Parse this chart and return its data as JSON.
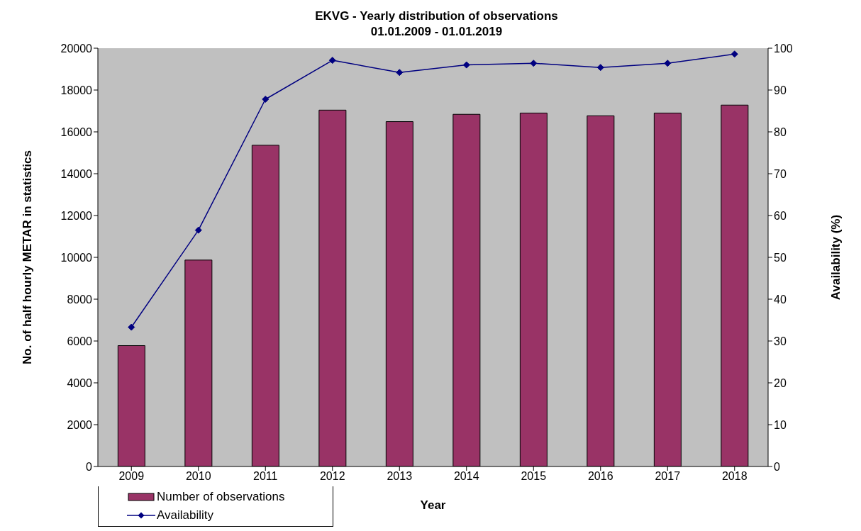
{
  "chart_data": {
    "type": "bar",
    "title": "EKVG - Yearly distribution of observations\n01.01.2009 - 01.01.2019",
    "xlabel": "Year",
    "ylabel": "No. of half hourly METAR in statistics",
    "y2label": "Availability (%)",
    "categories": [
      "2009",
      "2010",
      "2011",
      "2012",
      "2013",
      "2014",
      "2015",
      "2016",
      "2017",
      "2018"
    ],
    "series": [
      {
        "name": "Number of observations",
        "color": "#993366",
        "values": [
          5780,
          9870,
          15360,
          17040,
          16490,
          16840,
          16900,
          16770,
          16900,
          17280
        ]
      },
      {
        "name": "Availability",
        "type": "line",
        "axis": "y2",
        "color": "#000080",
        "marker": "diamond",
        "values": [
          33.3,
          56.5,
          87.8,
          97.1,
          94.2,
          96.0,
          96.4,
          95.4,
          96.4,
          98.6
        ]
      }
    ],
    "ylim": [
      0,
      20000
    ],
    "yticks": [
      0,
      2000,
      4000,
      6000,
      8000,
      10000,
      12000,
      14000,
      16000,
      18000,
      20000
    ],
    "y2lim": [
      0,
      100
    ],
    "y2ticks": [
      0,
      10,
      20,
      30,
      40,
      50,
      60,
      70,
      80,
      90,
      100
    ],
    "legend": "bottom left"
  }
}
